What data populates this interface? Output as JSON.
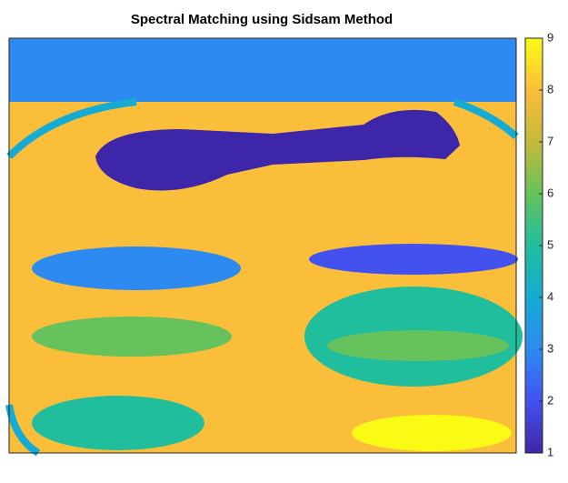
{
  "chart_data": {
    "type": "image",
    "title": "Spectral Matching using Sidsam Method",
    "region_values": [
      8,
      3,
      4,
      1,
      3,
      6,
      5,
      2,
      5,
      6,
      9
    ],
    "colormap": [
      "#3e26a8",
      "#4352ef",
      "#2d8af1",
      "#16abd2",
      "#21be9d",
      "#66c25c",
      "#c5b93c",
      "#fbbe3a",
      "#f9fb15"
    ],
    "clim": [
      1,
      9
    ],
    "cticks": [
      1,
      2,
      3,
      4,
      5,
      6,
      7,
      8,
      9
    ]
  }
}
